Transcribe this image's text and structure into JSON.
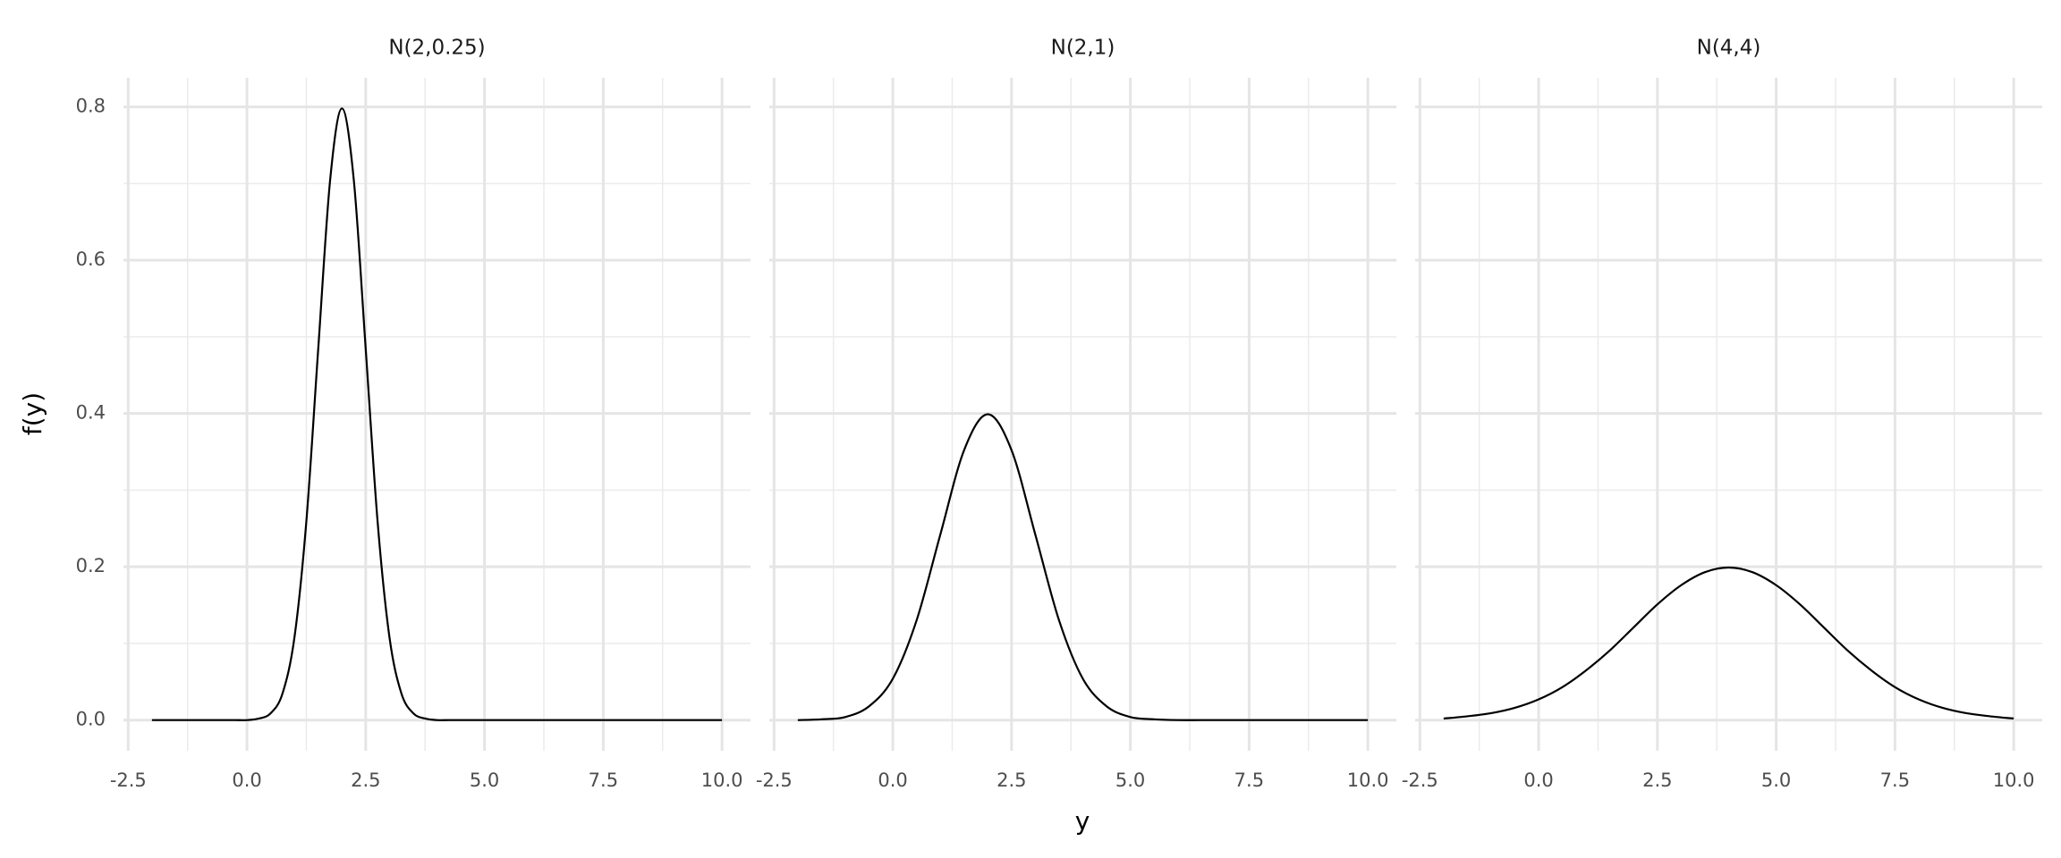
{
  "chart_data": {
    "type": "line",
    "xlabel": "y",
    "ylabel": "f(y)",
    "color": "#000000",
    "grid": true,
    "minor_grid": true,
    "xlim": [
      -2.6,
      10.6
    ],
    "ylim": [
      -0.04,
      0.838
    ],
    "xticks": [
      -2.5,
      {
        "value": 0,
        "label": "0.0"
      },
      2.5,
      {
        "value": 5,
        "label": "5.0"
      },
      7.5,
      {
        "value": 10,
        "label": "10.0"
      }
    ],
    "yticks": [
      {
        "value": 0,
        "label": "0.0"
      },
      0.2,
      0.4,
      0.6,
      0.8
    ],
    "panels": [
      {
        "title": "N(2,0.25)",
        "x": [
          -2,
          -1.75,
          -1.5,
          -1.25,
          -1,
          -0.75,
          -0.5,
          -0.25,
          0,
          0.25,
          0.5,
          0.75,
          1,
          1.25,
          1.5,
          1.75,
          2,
          2.25,
          2.5,
          2.75,
          3,
          3.25,
          3.5,
          3.75,
          4,
          4.25,
          4.5,
          4.75,
          5,
          5.25,
          5.5,
          5.75,
          6,
          6.25,
          6.5,
          6.75,
          7,
          7.25,
          7.5,
          7.75,
          8,
          8.25,
          8.5,
          8.75,
          9,
          9.25,
          9.5,
          9.75,
          10
        ],
        "values": [
          0,
          0,
          0,
          0,
          0,
          0,
          0,
          0,
          0,
          0.002,
          0.009,
          0.035,
          0.108,
          0.259,
          0.484,
          0.704,
          0.798,
          0.704,
          0.484,
          0.259,
          0.108,
          0.035,
          0.009,
          0.002,
          0,
          0,
          0,
          0,
          0,
          0,
          0,
          0,
          0,
          0,
          0,
          0,
          0,
          0,
          0,
          0,
          0,
          0,
          0,
          0,
          0,
          0,
          0,
          0,
          0
        ]
      },
      {
        "title": "N(2,1)",
        "x": [
          -2,
          -1.5,
          -1,
          -0.5,
          0,
          0.5,
          1,
          1.5,
          2,
          2.5,
          3,
          3.5,
          4,
          4.5,
          5,
          5.5,
          6,
          6.5,
          7,
          7.5,
          8,
          8.5,
          9,
          9.5,
          10
        ],
        "values": [
          0,
          0.001,
          0.004,
          0.018,
          0.054,
          0.13,
          0.242,
          0.352,
          0.399,
          0.352,
          0.242,
          0.13,
          0.054,
          0.018,
          0.004,
          0.001,
          0,
          0,
          0,
          0,
          0,
          0,
          0,
          0,
          0
        ]
      },
      {
        "title": "N(4,4)",
        "x": [
          -2,
          -1.5,
          -1,
          -0.5,
          0,
          0.5,
          1,
          1.5,
          2,
          2.5,
          3,
          3.5,
          4,
          4.5,
          5,
          5.5,
          6,
          6.5,
          7,
          7.5,
          8,
          8.5,
          9,
          9.5,
          10
        ],
        "values": [
          0.002,
          0.005,
          0.009,
          0.016,
          0.027,
          0.043,
          0.065,
          0.091,
          0.121,
          0.151,
          0.176,
          0.193,
          0.199,
          0.193,
          0.176,
          0.151,
          0.121,
          0.091,
          0.065,
          0.043,
          0.027,
          0.016,
          0.009,
          0.005,
          0.002
        ]
      }
    ]
  }
}
